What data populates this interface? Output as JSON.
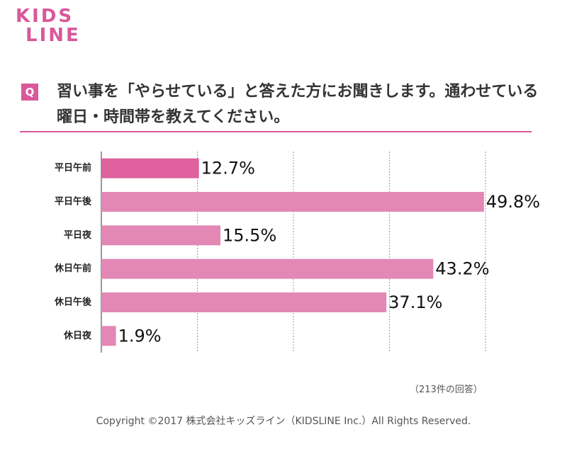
{
  "logo": [
    "KIDS",
    "LINE"
  ],
  "question_mark": "Q",
  "chart_data": {
    "type": "hbar",
    "title": "習い事を「やらせている」と答えた方にお聞きします。通わせている曜日・時間帯を教えてください。",
    "categories": [
      "平日午前",
      "平日午後",
      "平日夜",
      "休日午前",
      "休日午後",
      "休日夜"
    ],
    "values": [
      12.7,
      49.8,
      15.5,
      43.2,
      37.1,
      1.9
    ],
    "value_labels": [
      "12.7%",
      "49.8%",
      "15.5%",
      "43.2%",
      "37.1%",
      "1.9%"
    ],
    "colors": [
      "#df619d",
      "#e387b5",
      "#e387b5",
      "#e387b5",
      "#e387b5",
      "#e387b5"
    ],
    "xlim": [
      0,
      50
    ],
    "xticks": [
      0,
      12.5,
      25,
      37.5,
      50
    ],
    "grid": true,
    "note": "（213件の回答）"
  },
  "footer": "Copyright ©2017 株式会社キッズライン（KIDSLINE Inc.）All Rights Reserved."
}
